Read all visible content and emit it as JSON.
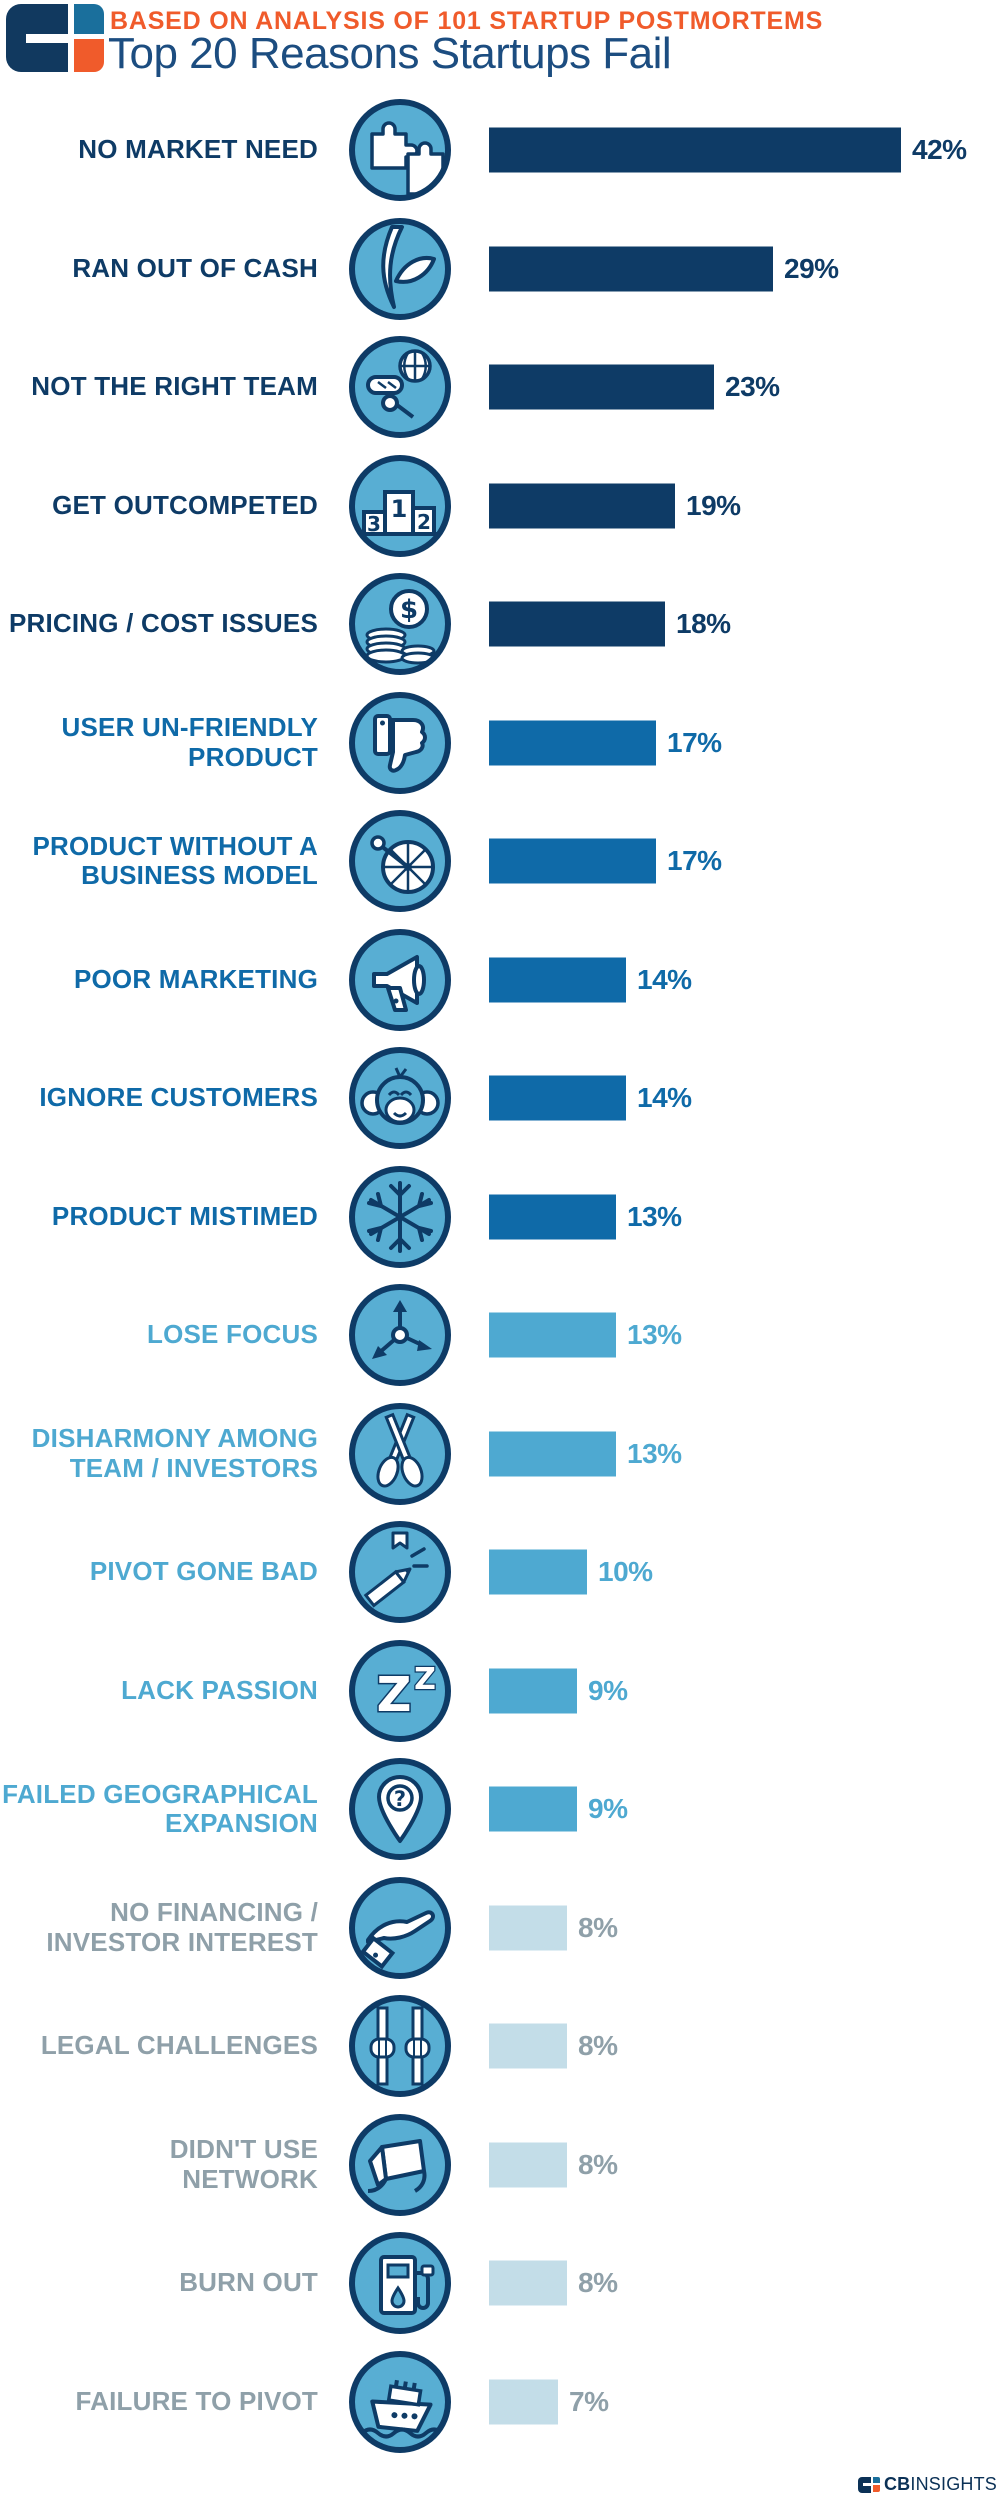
{
  "header": {
    "kicker": "BASED ON ANALYSIS OF 101 STARTUP POSTMORTEMS",
    "title": "Top 20 Reasons Startups Fail"
  },
  "footer": {
    "brand_bold": "CB",
    "brand_regular": "INSIGHTS"
  },
  "palette": {
    "navy": "#0e3b66",
    "medium_blue": "#0f6aa8",
    "light_blue": "#4ea9d1",
    "pale_blue": "#c3dde8",
    "gray_text": "#8fa0a9",
    "orange": "#f05b2b",
    "icon_fill": "#58aed3",
    "title_navy": "#1c4d80",
    "footer_navy": "#0b3156"
  },
  "chart_data": {
    "type": "bar",
    "orientation": "horizontal",
    "title": "Top 20 Reasons Startups Fail",
    "subtitle": "BASED ON ANALYSIS OF 101 STARTUP POSTMORTEMS",
    "unit": "%",
    "xlim": [
      0,
      45
    ],
    "grid": false,
    "legend": "none",
    "categories": [
      "NO MARKET NEED",
      "RAN OUT OF CASH",
      "NOT THE RIGHT TEAM",
      "GET OUTCOMPETED",
      "PRICING / COST ISSUES",
      "USER UN-FRIENDLY PRODUCT",
      "PRODUCT WITHOUT A BUSINESS MODEL",
      "POOR MARKETING",
      "IGNORE CUSTOMERS",
      "PRODUCT MISTIMED",
      "LOSE FOCUS",
      "DISHARMONY AMONG TEAM / INVESTORS",
      "PIVOT GONE BAD",
      "LACK PASSION",
      "FAILED GEOGRAPHICAL EXPANSION",
      "NO FINANCING / INVESTOR INTEREST",
      "LEGAL CHALLENGES",
      "DIDN'T USE NETWORK",
      "BURN OUT",
      "FAILURE TO PIVOT"
    ],
    "values": [
      42,
      29,
      23,
      19,
      18,
      17,
      17,
      14,
      14,
      13,
      13,
      13,
      10,
      9,
      9,
      8,
      8,
      8,
      8,
      7
    ],
    "value_labels": [
      "42%",
      "29%",
      "23%",
      "19%",
      "18%",
      "17%",
      "17%",
      "14%",
      "14%",
      "13%",
      "13%",
      "13%",
      "10%",
      "9%",
      "9%",
      "8%",
      "8%",
      "8%",
      "8%",
      "7%"
    ]
  },
  "rows": [
    {
      "label_lines": [
        "NO MARKET NEED"
      ],
      "value": 42,
      "value_label": "42%",
      "icon": "puzzle-globe-icon",
      "group": 1
    },
    {
      "label_lines": [
        "RAN OUT OF CASH"
      ],
      "value": 29,
      "value_label": "29%",
      "icon": "empty-pocket-icon",
      "group": 1
    },
    {
      "label_lines": [
        "NOT THE RIGHT TEAM"
      ],
      "value": 23,
      "value_label": "23%",
      "icon": "diver-globe-icon",
      "group": 1
    },
    {
      "label_lines": [
        "GET OUTCOMPETED"
      ],
      "value": 19,
      "value_label": "19%",
      "icon": "podium-icon",
      "group": 1
    },
    {
      "label_lines": [
        "PRICING / COST ISSUES"
      ],
      "value": 18,
      "value_label": "18%",
      "icon": "coins-icon",
      "group": 1
    },
    {
      "label_lines": [
        "USER UN-FRIENDLY",
        "PRODUCT"
      ],
      "value": 17,
      "value_label": "17%",
      "icon": "thumbs-down-icon",
      "group": 2
    },
    {
      "label_lines": [
        "PRODUCT WITHOUT A",
        "BUSINESS MODEL"
      ],
      "value": 17,
      "value_label": "17%",
      "icon": "wheel-icon",
      "group": 2
    },
    {
      "label_lines": [
        "POOR MARKETING"
      ],
      "value": 14,
      "value_label": "14%",
      "icon": "megaphone-icon",
      "group": 2
    },
    {
      "label_lines": [
        "IGNORE CUSTOMERS"
      ],
      "value": 14,
      "value_label": "14%",
      "icon": "monkey-icon",
      "group": 2
    },
    {
      "label_lines": [
        "PRODUCT MISTIMED"
      ],
      "value": 13,
      "value_label": "13%",
      "icon": "snowflake-icon",
      "group": 2
    },
    {
      "label_lines": [
        "LOSE FOCUS"
      ],
      "value": 13,
      "value_label": "13%",
      "icon": "scatter-arrows-icon",
      "group": 3
    },
    {
      "label_lines": [
        "DISHARMONY AMONG",
        "TEAM / INVESTORS"
      ],
      "value": 13,
      "value_label": "13%",
      "icon": "crossed-oars-icon",
      "group": 3
    },
    {
      "label_lines": [
        "PIVOT GONE BAD"
      ],
      "value": 10,
      "value_label": "10%",
      "icon": "broken-pencil-icon",
      "group": 3
    },
    {
      "label_lines": [
        "LACK PASSION"
      ],
      "value": 9,
      "value_label": "9%",
      "icon": "sleep-zz-icon",
      "group": 3
    },
    {
      "label_lines": [
        "FAILED GEOGRAPHICAL",
        "EXPANSION"
      ],
      "value": 9,
      "value_label": "9%",
      "icon": "map-pin-question-icon",
      "group": 3
    },
    {
      "label_lines": [
        "NO FINANCING /",
        "INVESTOR INTEREST"
      ],
      "value": 8,
      "value_label": "8%",
      "icon": "hand-out-icon",
      "group": 4
    },
    {
      "label_lines": [
        "LEGAL CHALLENGES"
      ],
      "value": 8,
      "value_label": "8%",
      "icon": "jail-bars-icon",
      "group": 4
    },
    {
      "label_lines": [
        "DIDN'T USE",
        "NETWORK"
      ],
      "value": 8,
      "value_label": "8%",
      "icon": "box-hide-icon",
      "group": 4
    },
    {
      "label_lines": [
        "BURN OUT"
      ],
      "value": 8,
      "value_label": "8%",
      "icon": "fuel-pump-icon",
      "group": 4
    },
    {
      "label_lines": [
        "FAILURE TO PIVOT"
      ],
      "value": 7,
      "value_label": "7%",
      "icon": "sinking-ship-icon",
      "group": 4
    }
  ]
}
